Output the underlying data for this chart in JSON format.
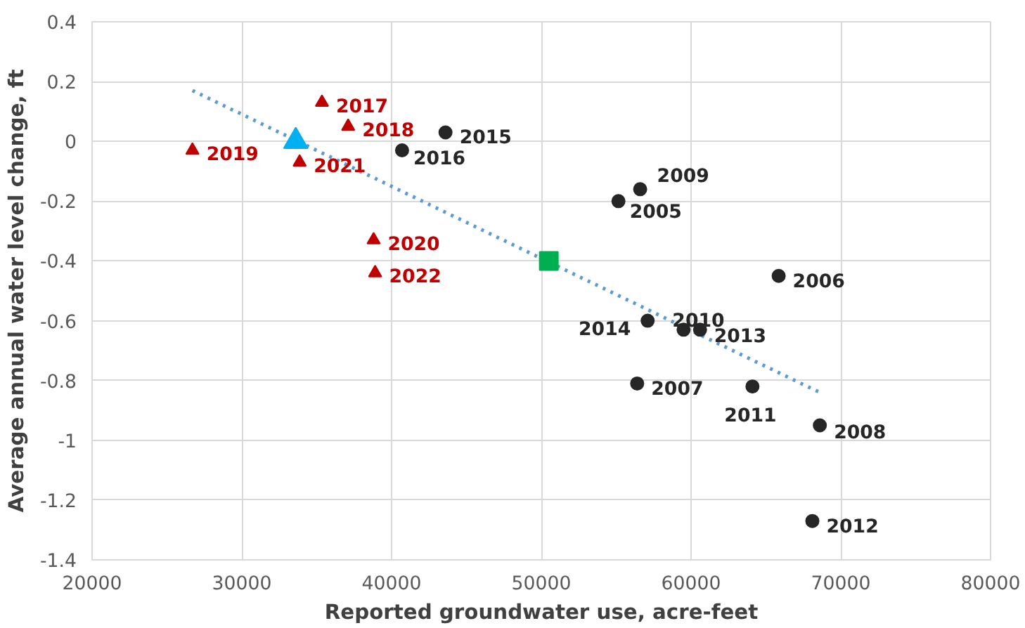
{
  "chart_data": {
    "type": "scatter",
    "xlabel": "Reported groundwater use, acre-feet",
    "ylabel": "Average annual water level change, ft",
    "xlim": [
      20000,
      80000
    ],
    "xticks": [
      20000,
      30000,
      40000,
      50000,
      60000,
      70000,
      80000
    ],
    "ylim": [
      -1.4,
      0.4
    ],
    "yticks": [
      {
        "value": -1.4,
        "label": "-1.4"
      },
      {
        "value": -1.2,
        "label": "-1.2"
      },
      {
        "value": -1,
        "label": "-1"
      },
      {
        "value": -0.8,
        "label": "-0.8"
      },
      {
        "value": -0.6,
        "label": "-0.6"
      },
      {
        "value": -0.4,
        "label": "-0.4"
      },
      {
        "value": -0.2,
        "label": "-0.2"
      },
      {
        "value": 0,
        "label": "0"
      },
      {
        "value": 0.2,
        "label": "0.2"
      },
      {
        "value": 0.4,
        "label": "0.4"
      }
    ],
    "grid": true,
    "series": [
      {
        "type": "line",
        "color": "#5b9bd5",
        "line_style": "dotted",
        "marker": "none",
        "x": [
          26700,
          68600
        ],
        "values": [
          0.17,
          -0.84
        ]
      },
      {
        "color": "#262626",
        "marker": "circle",
        "x": [
          55150,
          65850,
          56400,
          68600,
          56600,
          59500,
          64100,
          68100,
          60600,
          57100,
          43600,
          40700
        ],
        "values": [
          -0.2,
          -0.45,
          -0.81,
          -0.95,
          -0.16,
          -0.63,
          -0.82,
          -1.27,
          -0.63,
          -0.6,
          0.03,
          -0.03
        ]
      },
      {
        "color": "#c00000",
        "marker": "triangle",
        "x": [
          35350,
          37100,
          26700,
          38800,
          33860,
          38900
        ],
        "values": [
          0.13,
          0.05,
          -0.03,
          -0.33,
          -0.07,
          -0.44
        ]
      },
      {
        "color": "#00b0f0",
        "marker": "triangle",
        "x": [
          33600
        ],
        "values": [
          0
        ]
      },
      {
        "color": "#00b050",
        "marker": "square",
        "x": [
          50500
        ],
        "values": [
          -0.4
        ]
      }
    ],
    "annotations": [
      {
        "text": "2005",
        "x": 55150,
        "y": -0.2
      },
      {
        "text": "2006",
        "x": 65850,
        "y": -0.45
      },
      {
        "text": "2007",
        "x": 56400,
        "y": -0.81
      },
      {
        "text": "2008",
        "x": 68600,
        "y": -0.95
      },
      {
        "text": "2009",
        "x": 56600,
        "y": -0.16
      },
      {
        "text": "2010",
        "x": 59500,
        "y": -0.63
      },
      {
        "text": "2011",
        "x": 64100,
        "y": -0.82
      },
      {
        "text": "2012",
        "x": 68100,
        "y": -1.27
      },
      {
        "text": "2013",
        "x": 60600,
        "y": -0.63
      },
      {
        "text": "2014",
        "x": 57100,
        "y": -0.6
      },
      {
        "text": "2015",
        "x": 43600,
        "y": 0.03
      },
      {
        "text": "2016",
        "x": 40700,
        "y": -0.03
      },
      {
        "text": "2017",
        "x": 35350,
        "y": 0.13
      },
      {
        "text": "2018",
        "x": 37100,
        "y": 0.05
      },
      {
        "text": "2019",
        "x": 26700,
        "y": -0.03
      },
      {
        "text": "2020",
        "x": 38800,
        "y": -0.33
      },
      {
        "text": "2021",
        "x": 33860,
        "y": -0.07
      },
      {
        "text": "2022",
        "x": 38900,
        "y": -0.44
      }
    ]
  }
}
